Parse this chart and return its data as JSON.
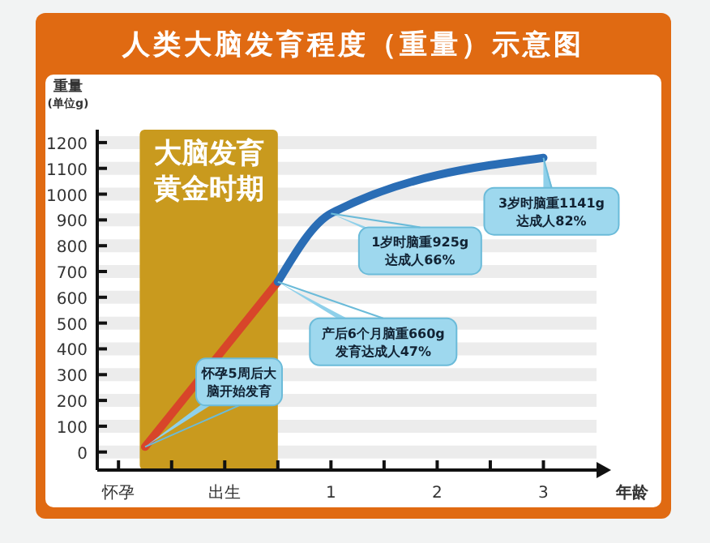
{
  "chart_data": {
    "type": "line",
    "title": "人类大脑发育程度（重量）示意图",
    "xlabel": "年龄",
    "ylabel": "重量\n(单位g)",
    "series": [
      {
        "color": "#d8452a",
        "x": [
          -0.75,
          0.5
        ],
        "values": [
          20,
          660
        ]
      },
      {
        "color": "#2a6db5",
        "x": [
          0.5,
          1,
          3
        ],
        "values": [
          660,
          925,
          1141
        ]
      }
    ],
    "xlim": [
      -1.2,
      3.5
    ],
    "xticks": [
      {
        "value": -1,
        "label": "怀孕"
      },
      {
        "value": -0.5,
        "label": null
      },
      {
        "value": 0,
        "label": "出生"
      },
      {
        "value": 0.5,
        "label": null
      },
      1,
      {
        "value": 1.5,
        "label": null
      },
      2,
      {
        "value": 2.5,
        "label": null
      },
      3
    ],
    "ylim": [
      -70,
      1250
    ],
    "yticks": [
      0,
      100,
      200,
      300,
      400,
      500,
      600,
      700,
      800,
      900,
      1000,
      1100,
      1200
    ],
    "grid": "y",
    "line_style": "solid",
    "bands": [
      {
        "axis": "x",
        "from": -0.8,
        "to": 0.5,
        "label": "大脑发育黄金时期",
        "color": "#c99a1e"
      }
    ],
    "annotations": [
      {
        "text": "怀孕5周后大脑开始发育",
        "x": -0.75,
        "y": 20
      },
      {
        "text": "产后6个月脑重660g发育达成人47%",
        "x": 0.5,
        "y": 660
      },
      {
        "text": "1岁时脑重925g达成人66%",
        "x": 1,
        "y": 925
      },
      {
        "text": "3岁时脑重1141g达成人82%",
        "x": 3,
        "y": 1141
      }
    ]
  }
}
